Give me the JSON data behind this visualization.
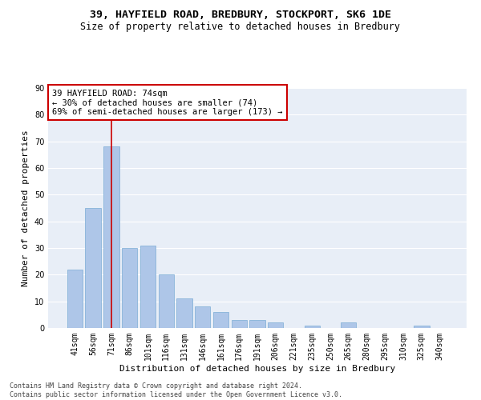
{
  "title1": "39, HAYFIELD ROAD, BREDBURY, STOCKPORT, SK6 1DE",
  "title2": "Size of property relative to detached houses in Bredbury",
  "xlabel": "Distribution of detached houses by size in Bredbury",
  "ylabel": "Number of detached properties",
  "bar_labels": [
    "41sqm",
    "56sqm",
    "71sqm",
    "86sqm",
    "101sqm",
    "116sqm",
    "131sqm",
    "146sqm",
    "161sqm",
    "176sqm",
    "191sqm",
    "206sqm",
    "221sqm",
    "235sqm",
    "250sqm",
    "265sqm",
    "280sqm",
    "295sqm",
    "310sqm",
    "325sqm",
    "340sqm"
  ],
  "bar_values": [
    22,
    45,
    68,
    30,
    31,
    20,
    11,
    8,
    6,
    3,
    3,
    2,
    0,
    1,
    0,
    2,
    0,
    0,
    0,
    1,
    0
  ],
  "bar_color": "#aec6e8",
  "bar_edge_color": "#7aacd4",
  "background_color": "#e8eef7",
  "grid_color": "#ffffff",
  "annotation_box_text": "39 HAYFIELD ROAD: 74sqm\n← 30% of detached houses are smaller (74)\n69% of semi-detached houses are larger (173) →",
  "annotation_box_color": "#cc0000",
  "vline_x": 2,
  "vline_color": "#cc0000",
  "ylim": [
    0,
    90
  ],
  "yticks": [
    0,
    10,
    20,
    30,
    40,
    50,
    60,
    70,
    80,
    90
  ],
  "footnote": "Contains HM Land Registry data © Crown copyright and database right 2024.\nContains public sector information licensed under the Open Government Licence v3.0.",
  "title1_fontsize": 9.5,
  "title2_fontsize": 8.5,
  "xlabel_fontsize": 8,
  "ylabel_fontsize": 8,
  "tick_fontsize": 7,
  "annot_fontsize": 7.5,
  "footnote_fontsize": 6
}
